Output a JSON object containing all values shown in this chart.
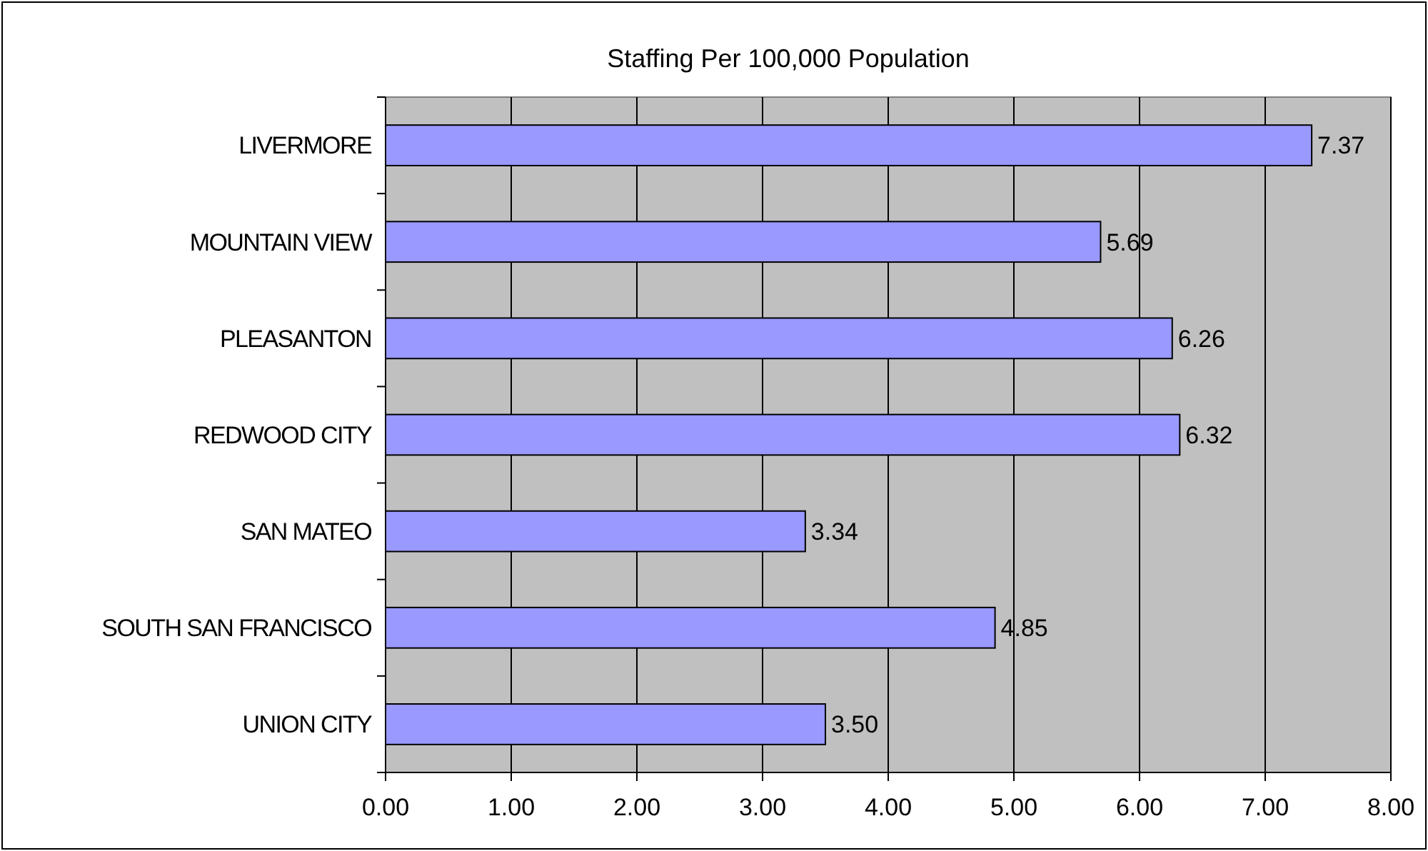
{
  "chart_data": {
    "type": "bar",
    "orientation": "horizontal",
    "title": "Staffing Per 100,000 Population",
    "categories": [
      "LIVERMORE",
      "MOUNTAIN VIEW",
      "PLEASANTON",
      "REDWOOD CITY",
      "SAN MATEO",
      "SOUTH SAN FRANCISCO",
      "UNION CITY"
    ],
    "values": [
      7.37,
      5.69,
      6.26,
      6.32,
      3.34,
      4.85,
      3.5
    ],
    "value_labels": [
      "7.37",
      "5.69",
      "6.26",
      "6.32",
      "3.34",
      "4.85",
      "3.50"
    ],
    "color": "#9999ff",
    "xlim": [
      0,
      8
    ],
    "xticks": [
      {
        "value": 0,
        "label": "0.00"
      },
      {
        "value": 1,
        "label": "1.00"
      },
      {
        "value": 2,
        "label": "2.00"
      },
      {
        "value": 3,
        "label": "3.00"
      },
      {
        "value": 4,
        "label": "4.00"
      },
      {
        "value": 5,
        "label": "5.00"
      },
      {
        "value": 6,
        "label": "6.00"
      },
      {
        "value": 7,
        "label": "7.00"
      },
      {
        "value": 8,
        "label": "8.00"
      }
    ],
    "grid": "x"
  }
}
